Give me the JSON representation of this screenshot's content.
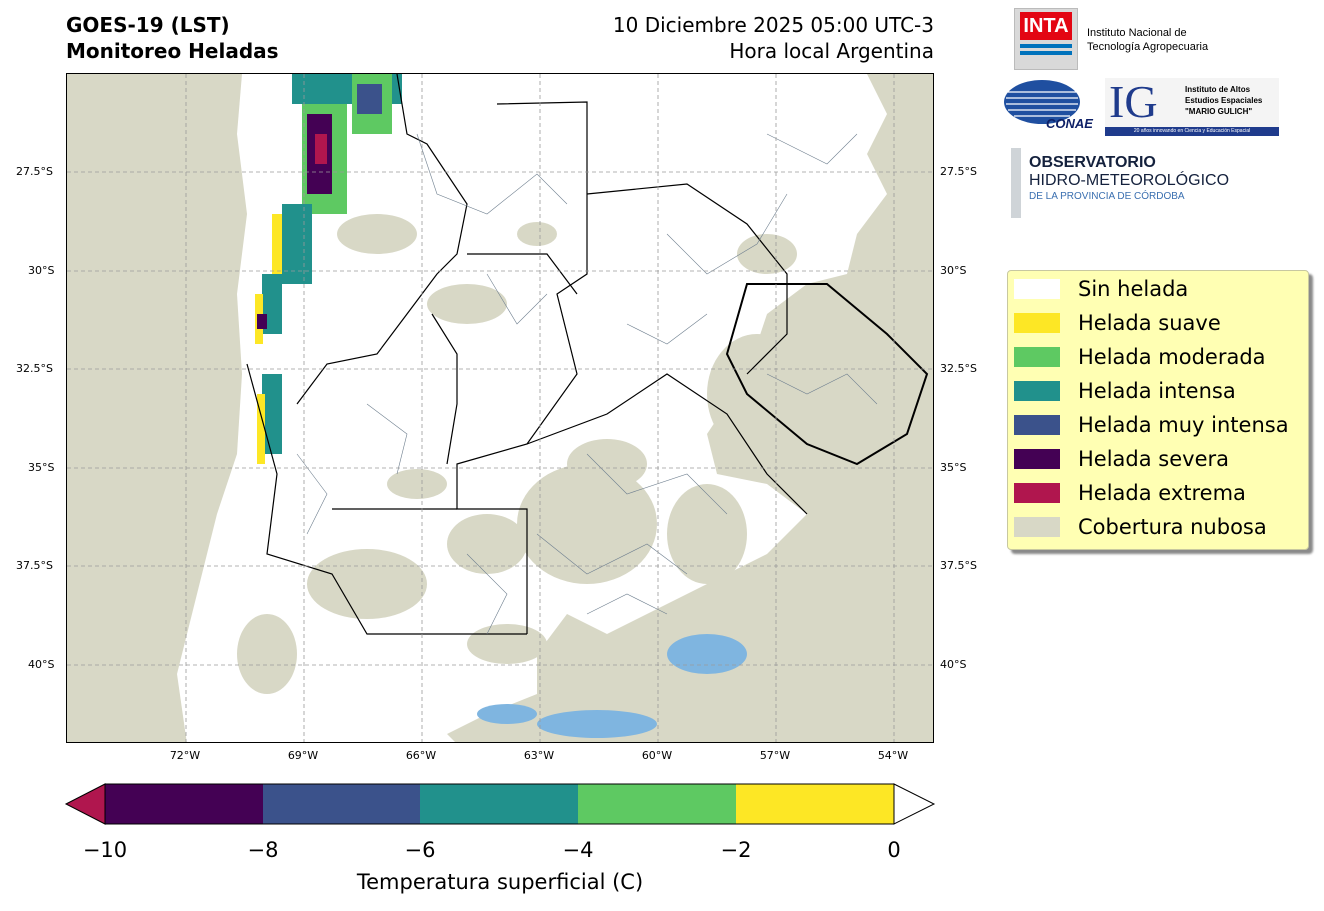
{
  "header": {
    "satellite": "GOES-19 (LST)",
    "product": "Monitoreo Heladas",
    "datetime": "10 Diciembre 2025 05:00 UTC-3",
    "timezone_note": "Hora local Argentina"
  },
  "map": {
    "lat_labels": [
      "27.5°S",
      "30°S",
      "32.5°S",
      "35°S",
      "37.5°S",
      "40°S"
    ],
    "lon_labels": [
      "72°W",
      "69°W",
      "66°W",
      "63°W",
      "60°W",
      "57°W",
      "54°W"
    ],
    "colors": {
      "cloud": "#d8d8c6",
      "land": "#ffffff",
      "water": "#7fb5e0"
    }
  },
  "logos": {
    "inta": {
      "acronym": "INTA",
      "line1": "Instituto Nacional de",
      "line2": "Tecnología Agropecuaria"
    },
    "conae": {
      "text": "CONAE"
    },
    "ig": {
      "acronym": "IG",
      "line1": "Instituto de Altos",
      "line2": "Estudios Espaciales",
      "line3": "\"MARIO GULICH\"",
      "tagline": "20 años innovando en Ciencia y Educación Espacial"
    },
    "observatorio": {
      "line1": "OBSERVATORIO",
      "line2": "HIDRO-METEOROLÓGICO",
      "line3": "DE LA PROVINCIA DE CÓRDOBA"
    }
  },
  "legend": {
    "items": [
      {
        "label": "Sin helada",
        "color": "#ffffff"
      },
      {
        "label": "Helada suave",
        "color": "#fde725"
      },
      {
        "label": "Helada moderada",
        "color": "#5ec962"
      },
      {
        "label": "Helada intensa",
        "color": "#21918c"
      },
      {
        "label": "Helada muy intensa",
        "color": "#3b528b"
      },
      {
        "label": "Helada severa",
        "color": "#440154"
      },
      {
        "label": "Helada extrema",
        "color": "#b0164e"
      },
      {
        "label": "Cobertura nubosa",
        "color": "#d8d8c6"
      }
    ]
  },
  "colorbar": {
    "label": "Temperatura superficial (C)",
    "ticks": [
      "−10",
      "−8",
      "−6",
      "−4",
      "−2",
      "0"
    ],
    "segments": [
      "#440154",
      "#3b528b",
      "#21918c",
      "#5ec962",
      "#fde725"
    ],
    "under_color": "#b0164e",
    "over_color": "#ffffff"
  }
}
